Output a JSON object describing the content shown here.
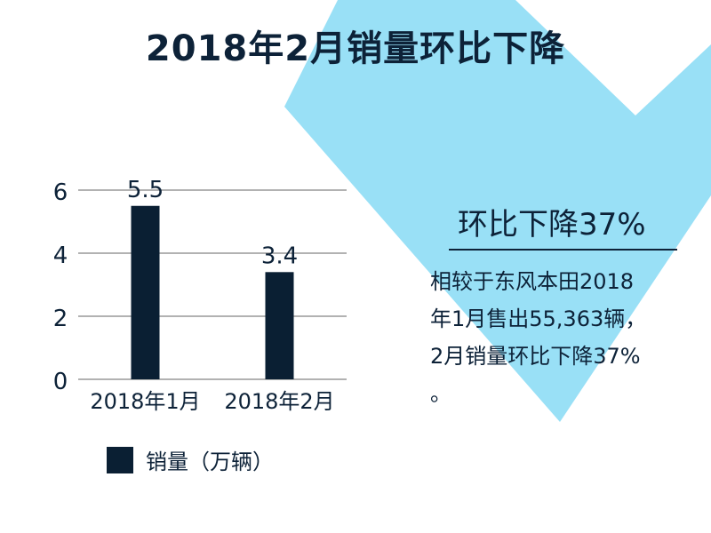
{
  "title": "2018年2月销量环比下降",
  "chart_data": {
    "type": "bar",
    "categories": [
      "2018年1月",
      "2018年2月"
    ],
    "series": [
      {
        "name": "销量（万辆）",
        "values": [
          5.5,
          3.4
        ]
      }
    ],
    "data_labels": [
      "5.5",
      "3.4"
    ],
    "ylim": [
      0,
      6
    ],
    "yticks": [
      0,
      2,
      4,
      6
    ],
    "grid": true,
    "legend_position": "bottom",
    "bar_color": "#0a1f33"
  },
  "legend": {
    "label": "销量（万辆）"
  },
  "headline": "环比下降37%",
  "description": {
    "lines": [
      "相较于东风本田2018",
      "年1月售出55,363辆，",
      "2月销量环比下降37%",
      "。"
    ]
  },
  "colors": {
    "accent": "#99e0f6",
    "text": "#0d2238",
    "bar": "#0a1f33"
  }
}
